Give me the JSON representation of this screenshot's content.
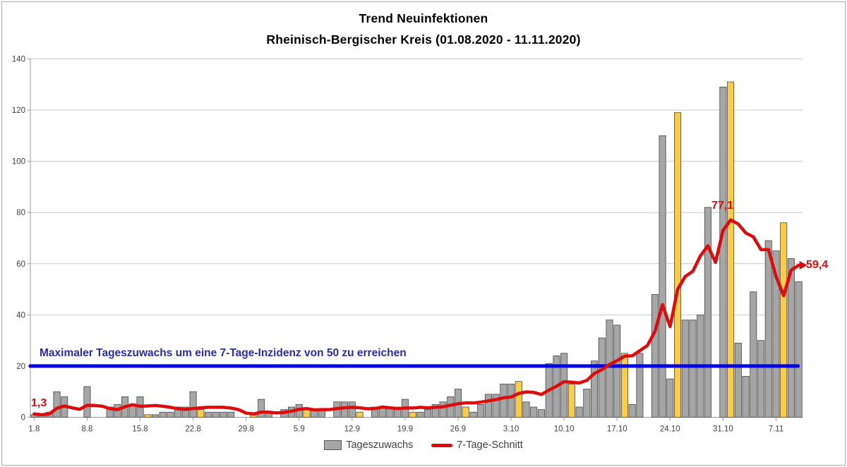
{
  "title": {
    "line1": "Trend Neuinfektionen",
    "line2": "Rheinisch-Bergischer  Kreis (01.08.2020 - 11.11.2020)"
  },
  "threshold": {
    "label": "Maximaler Tageszuwachs um eine 7-Tage-Inzidenz von 50 zu erreichen",
    "value": 20
  },
  "annotations": {
    "start": "1,3",
    "peak": "77,1",
    "end": "59,4"
  },
  "legend": {
    "bars_label": "Tageszuwachs",
    "line_label": "7-Tage-Schnitt"
  },
  "colors": {
    "bar": "#a6a6a6",
    "bar_border": "#474747",
    "bar_highlight": "#fbcb4a",
    "avg_line": "#dd0b0b",
    "threshold_line": "#0202df",
    "threshold_text": "#2b2bb0",
    "grid": "#c9c9c9",
    "axis": "#9a9a9a",
    "tick_text": "#3f3f3f"
  },
  "chart_data": {
    "type": "bar+line",
    "title": "Trend Neuinfektionen Rheinisch-Bergischer Kreis (01.08.2020 - 11.11.2020)",
    "ylim": [
      0,
      140
    ],
    "y_ticks": [
      0,
      20,
      40,
      60,
      80,
      100,
      120,
      140
    ],
    "grid": true,
    "legend_position": "bottom",
    "x_tick_labels": [
      "1.8",
      "8.8",
      "15.8",
      "22.8",
      "29.8",
      "5.9",
      "12.9",
      "19.9",
      "26.9",
      "3.10",
      "10.10",
      "17.10",
      "24.10",
      "31.10",
      "7.11"
    ],
    "x_tick_indices": [
      0,
      7,
      14,
      21,
      28,
      35,
      42,
      49,
      56,
      63,
      70,
      77,
      84,
      91,
      98
    ],
    "threshold_value": 20,
    "categories": [
      "1.8",
      "2.8",
      "3.8",
      "4.8",
      "5.8",
      "6.8",
      "7.8",
      "8.8",
      "9.8",
      "10.8",
      "11.8",
      "12.8",
      "13.8",
      "14.8",
      "15.8",
      "16.8",
      "17.8",
      "18.8",
      "19.8",
      "20.8",
      "21.8",
      "22.8",
      "23.8",
      "24.8",
      "25.8",
      "26.8",
      "27.8",
      "28.8",
      "29.8",
      "30.8",
      "31.8",
      "1.9",
      "2.9",
      "3.9",
      "4.9",
      "5.9",
      "6.9",
      "7.9",
      "8.9",
      "9.9",
      "10.9",
      "11.9",
      "12.9",
      "13.9",
      "14.9",
      "15.9",
      "16.9",
      "17.9",
      "18.9",
      "19.9",
      "20.9",
      "21.9",
      "22.9",
      "23.9",
      "24.9",
      "25.9",
      "26.9",
      "27.9",
      "28.9",
      "29.9",
      "30.9",
      "1.10",
      "2.10",
      "3.10",
      "4.10",
      "5.10",
      "6.10",
      "7.10",
      "8.10",
      "9.10",
      "10.10",
      "11.10",
      "12.10",
      "13.10",
      "14.10",
      "15.10",
      "16.10",
      "17.10",
      "18.10",
      "19.10",
      "20.10",
      "21.10",
      "22.10",
      "23.10",
      "24.10",
      "25.10",
      "26.10",
      "27.10",
      "28.10",
      "29.10",
      "30.10",
      "31.10",
      "1.11",
      "2.11",
      "3.11",
      "4.11",
      "5.11",
      "6.11",
      "7.11",
      "8.11",
      "9.11",
      "10.11"
    ],
    "series": [
      {
        "name": "Tageszuwachs",
        "type": "bar",
        "values": [
          1,
          1,
          2,
          10,
          8,
          0,
          0,
          12,
          0,
          0,
          4,
          5,
          8,
          5,
          8,
          1,
          1,
          2,
          2,
          4,
          4,
          10,
          3,
          2,
          2,
          2,
          2,
          0,
          0,
          1,
          7,
          2,
          0,
          3,
          4,
          5,
          3,
          3,
          3,
          0,
          6,
          6,
          6,
          2,
          0,
          4,
          4,
          4,
          4,
          7,
          2,
          2,
          3,
          5,
          6,
          8,
          11,
          4,
          2,
          5,
          9,
          9,
          13,
          13,
          14,
          6,
          4,
          3,
          21,
          24,
          25,
          13,
          4,
          11,
          22,
          31,
          38,
          36,
          25,
          5,
          25,
          0,
          48,
          110,
          15,
          119,
          38,
          38,
          40,
          82,
          0,
          129,
          131,
          29,
          16,
          49,
          30,
          69,
          65,
          76,
          62,
          53
        ],
        "highlight_indices": [
          15,
          22,
          29,
          36,
          43,
          50,
          57,
          64,
          71,
          78,
          85,
          92,
          99
        ]
      },
      {
        "name": "7-Tage-Schnitt",
        "type": "line",
        "values": [
          1.3,
          1.0,
          1.3,
          3.5,
          4.4,
          3.7,
          3.1,
          4.7,
          4.6,
          4.3,
          3.4,
          3.0,
          4.1,
          4.9,
          4.3,
          4.4,
          4.6,
          4.3,
          3.9,
          3.3,
          3.1,
          3.4,
          3.7,
          3.9,
          3.9,
          3.9,
          3.6,
          3.0,
          1.6,
          1.3,
          2.0,
          2.0,
          1.7,
          1.9,
          2.4,
          3.1,
          3.4,
          2.9,
          3.0,
          3.0,
          3.4,
          3.7,
          3.9,
          3.7,
          3.3,
          3.4,
          4.0,
          3.7,
          3.4,
          3.6,
          3.6,
          3.9,
          3.7,
          3.9,
          4.1,
          4.7,
          5.3,
          5.6,
          5.6,
          5.9,
          6.4,
          6.9,
          7.6,
          7.9,
          9.3,
          9.9,
          9.7,
          8.9,
          10.6,
          12.1,
          13.9,
          13.7,
          13.4,
          14.4,
          17.1,
          18.6,
          20.6,
          22.1,
          23.9,
          24.0,
          26.0,
          28.0,
          33.5,
          44.0,
          35.4,
          50.0,
          55.0,
          57.0,
          63.0,
          67.0,
          60.5,
          73.0,
          77.1,
          75.5,
          72.0,
          70.5,
          65.5,
          65.5,
          55.0,
          47.5,
          57.5,
          59.4
        ]
      }
    ]
  }
}
